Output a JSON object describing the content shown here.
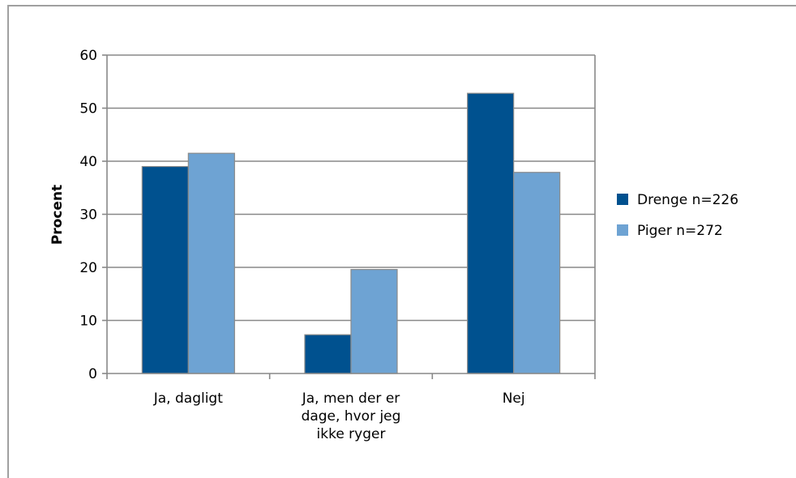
{
  "chart_data": {
    "type": "bar",
    "title": "",
    "xlabel": "",
    "ylabel": "Procent",
    "ylim": [
      0,
      60
    ],
    "yticks": [
      0,
      10,
      20,
      30,
      40,
      50,
      60
    ],
    "grid": true,
    "legend_position": "right",
    "categories": [
      [
        "Ja, dagligt"
      ],
      [
        "Ja, men der er",
        "dage, hvor jeg",
        "ikke ryger"
      ],
      [
        "Nej"
      ]
    ],
    "series": [
      {
        "name": "Drenge n=226",
        "color": "#00518f",
        "values": [
          39,
          7.3,
          52.8
        ]
      },
      {
        "name": "Piger n=272",
        "color": "#6ea3d3",
        "values": [
          41.5,
          19.6,
          37.9
        ]
      }
    ]
  }
}
